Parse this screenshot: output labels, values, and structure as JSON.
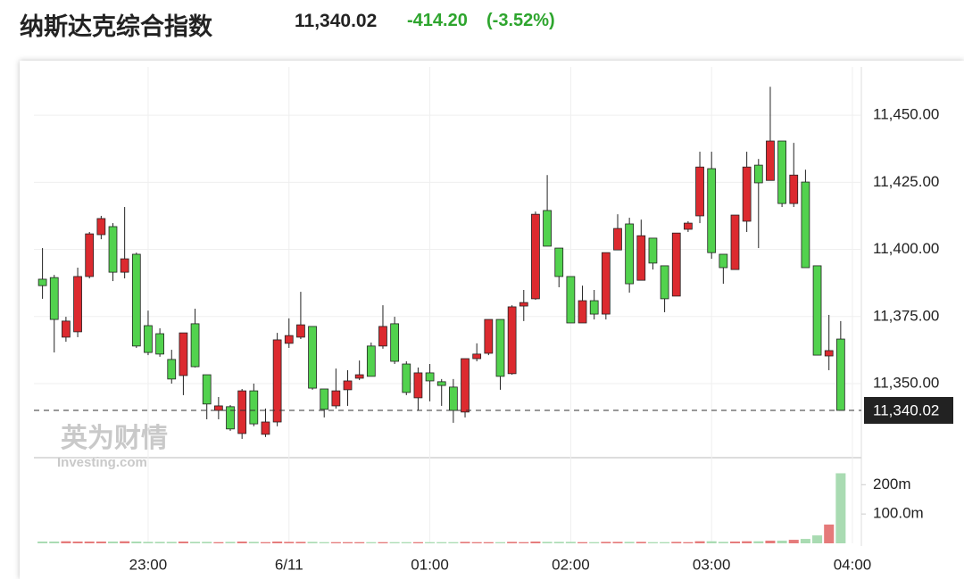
{
  "chart_data": {
    "type": "candlestick",
    "title": "纳斯达克综合指数",
    "price": "11,340.02",
    "change": "-414.20",
    "change_pct": "(-3.52%)",
    "watermark": {
      "cn": "英为财情",
      "en": "Investing.com"
    },
    "up_color": "#dc2a2f",
    "down_color": "#52d24e",
    "open": [
      11388.9,
      11389.5,
      11367.3,
      11369.3,
      11389.9,
      11405.5,
      11408.5,
      11391.5,
      11398.2,
      11371.6,
      11368.6,
      11359.0,
      11353.0,
      11372.3,
      11353.3,
      11340.0,
      11341.4,
      11331.4,
      11347.3,
      11331.1,
      11335.7,
      11365.0,
      11367.3,
      11371.3,
      11348.0,
      11341.7,
      11347.7,
      11352.0,
      11364.0,
      11364.0,
      11372.3,
      11357.3,
      11344.7,
      11354.0,
      11350.7,
      11348.7,
      11339.4,
      11359.3,
      11361.3,
      11373.9,
      11353.7,
      11378.9,
      11381.6,
      11414.5,
      11400.5,
      11389.9,
      11372.6,
      11380.9,
      11375.9,
      11399.8,
      11409.5,
      11388.5,
      11404.2,
      11393.9,
      11382.6,
      11407.5,
      11412.5,
      11430.1,
      11398.2,
      11392.5,
      11410.5,
      11431.4,
      11425.7,
      11440.4,
      11417.1,
      11425.1,
      11393.9,
      11360.3,
      11366.6
    ],
    "high": [
      11400.5,
      11390.5,
      11374.9,
      11393.2,
      11406.5,
      11412.5,
      11409.8,
      11415.8,
      11398.8,
      11377.2,
      11370.6,
      11362.6,
      11368.9,
      11377.9,
      11353.3,
      11345.0,
      11342.0,
      11348.0,
      11350.0,
      11340.7,
      11368.9,
      11374.3,
      11384.2,
      11371.3,
      11348.0,
      11355.6,
      11355.0,
      11358.6,
      11365.3,
      11379.2,
      11374.9,
      11358.3,
      11356.0,
      11357.3,
      11351.7,
      11351.7,
      11359.3,
      11365.0,
      11373.9,
      11373.9,
      11379.2,
      11384.9,
      11414.1,
      11427.7,
      11400.5,
      11389.9,
      11386.5,
      11384.9,
      11398.8,
      11413.1,
      11411.8,
      11411.1,
      11404.2,
      11393.9,
      11406.1,
      11410.5,
      11436.4,
      11436.4,
      11398.2,
      11412.8,
      11436.4,
      11433.7,
      11460.6,
      11440.4,
      11439.7,
      11429.7,
      11393.9,
      11375.6,
      11373.3
    ],
    "low": [
      11381.6,
      11361.6,
      11365.6,
      11367.3,
      11389.2,
      11403.8,
      11388.2,
      11389.2,
      11363.3,
      11360.6,
      11360.0,
      11350.0,
      11345.7,
      11356.0,
      11336.7,
      11336.7,
      11332.4,
      11329.4,
      11334.1,
      11330.1,
      11334.1,
      11363.3,
      11366.6,
      11347.7,
      11337.4,
      11340.7,
      11341.7,
      11351.3,
      11352.7,
      11363.0,
      11357.3,
      11345.7,
      11340.0,
      11343.4,
      11341.7,
      11335.4,
      11337.4,
      11358.3,
      11360.6,
      11347.7,
      11353.3,
      11373.3,
      11381.2,
      11401.2,
      11385.9,
      11372.6,
      11372.6,
      11373.9,
      11373.9,
      11399.8,
      11383.9,
      11388.5,
      11392.5,
      11376.6,
      11382.6,
      11406.5,
      11409.8,
      11396.5,
      11387.2,
      11392.5,
      11406.5,
      11400.5,
      11425.7,
      11415.8,
      11415.8,
      11393.2,
      11360.6,
      11355.0,
      11340.0
    ],
    "close": [
      11386.5,
      11373.9,
      11373.3,
      11389.9,
      11405.8,
      11411.5,
      11391.5,
      11396.5,
      11364.0,
      11361.6,
      11361.0,
      11351.7,
      11368.9,
      11356.3,
      11342.4,
      11341.7,
      11333.1,
      11347.3,
      11335.0,
      11335.7,
      11366.3,
      11367.9,
      11371.9,
      11348.3,
      11340.4,
      11347.3,
      11351.0,
      11353.3,
      11352.7,
      11371.3,
      11358.3,
      11346.7,
      11354.0,
      11351.0,
      11349.3,
      11340.0,
      11359.3,
      11361.0,
      11373.9,
      11352.7,
      11378.6,
      11380.2,
      11413.1,
      11401.2,
      11389.9,
      11372.6,
      11380.9,
      11375.9,
      11398.8,
      11407.8,
      11387.2,
      11405.1,
      11394.9,
      11381.6,
      11406.1,
      11409.8,
      11430.7,
      11398.8,
      11393.2,
      11412.8,
      11430.7,
      11424.8,
      11440.4,
      11417.1,
      11427.7,
      11393.2,
      11360.6,
      11362.3,
      11340.02
    ],
    "ylim": [
      11322.4,
      11468
    ],
    "yticks": [
      {
        "value": 11350,
        "label": "11,350.00"
      },
      {
        "value": 11375,
        "label": "11,375.00"
      },
      {
        "value": 11400,
        "label": "11,400.00"
      },
      {
        "value": 11425,
        "label": "11,425.00"
      },
      {
        "value": 11450,
        "label": "11,450.00"
      }
    ],
    "xlim": [
      -0.73,
      69.76
    ],
    "xticks": [
      {
        "value": 9,
        "label": "23:00"
      },
      {
        "value": 21,
        "label": "6/11"
      },
      {
        "value": 33,
        "label": "01:00"
      },
      {
        "value": 45,
        "label": "02:00"
      },
      {
        "value": 57,
        "label": "03:00"
      },
      {
        "value": 69,
        "label": "04:00"
      }
    ],
    "grid": true,
    "last_price": {
      "value": 11340.02,
      "label": "11,340.02"
    },
    "volume": {
      "up_color": "#e57a7a",
      "down_color": "#a9dbb2",
      "values": [
        6000000,
        6000000,
        7000000,
        6000000,
        6000000,
        6000000,
        6000000,
        7000000,
        6000000,
        5000000,
        5000000,
        5000000,
        6000000,
        5000000,
        5000000,
        4000000,
        5000000,
        6000000,
        5000000,
        4000000,
        6000000,
        5000000,
        5000000,
        5000000,
        4000000,
        4000000,
        4000000,
        4000000,
        4000000,
        4000000,
        4000000,
        4000000,
        4000000,
        4000000,
        4000000,
        4000000,
        5000000,
        4000000,
        4000000,
        4000000,
        5000000,
        4000000,
        6000000,
        5000000,
        5000000,
        5000000,
        4000000,
        4000000,
        5000000,
        5000000,
        5000000,
        5000000,
        4000000,
        4000000,
        5000000,
        4000000,
        7000000,
        7000000,
        5000000,
        6000000,
        7000000,
        7000000,
        9000000,
        9000000,
        12000000,
        15000000,
        27000000,
        64000000,
        239000000
      ],
      "ylim": [
        0,
        280000000
      ],
      "yticks": [
        {
          "value": 100000000,
          "label": "100.0m"
        },
        {
          "value": 200000000,
          "label": "200m"
        }
      ]
    }
  }
}
